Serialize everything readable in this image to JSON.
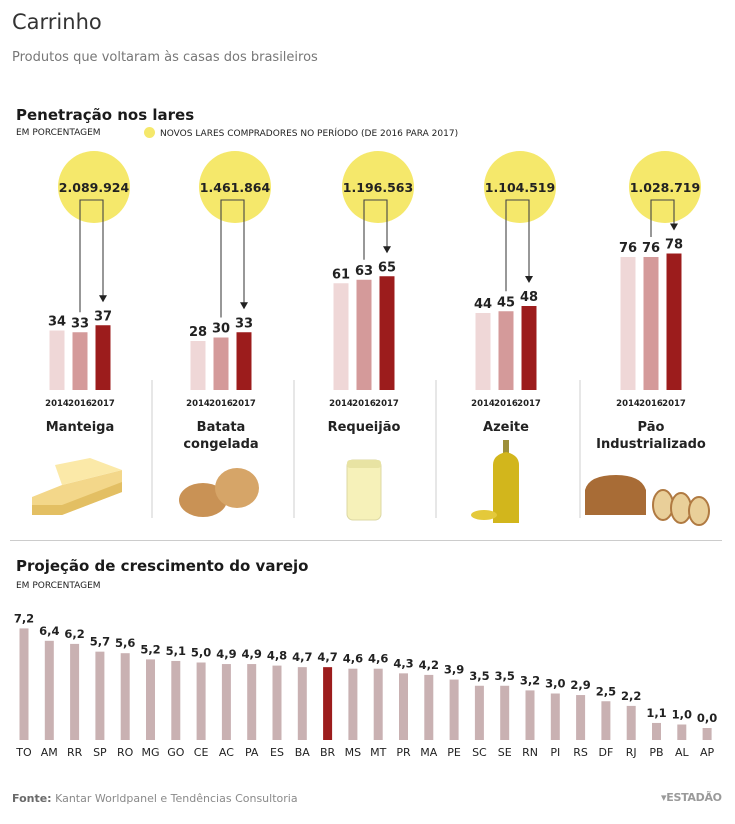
{
  "header": {
    "title": "Carrinho",
    "subtitle": "Produtos que voltaram às casas dos brasileiros"
  },
  "section1": {
    "title": "Penetração nos lares",
    "unit": "EM PORCENTAGEM",
    "legend": "NOVOS LARES COMPRADORES NO PERÍODO (DE 2016 PARA 2017)"
  },
  "section2": {
    "title": "Projeção de crescimento do varejo",
    "unit": "EM PORCENTAGEM"
  },
  "footer": {
    "source_label": "Fonte:",
    "source_text": " Kantar Worldpanel e Tendências Consultoria",
    "brand": "ESTADÃO"
  },
  "colors": {
    "bar_2014": "#efd7d7",
    "bar_2016": "#d49a9a",
    "bar_2017": "#9c1c1c",
    "circle": "#f5e86b",
    "state_bar": "#c9b1b2",
    "state_highlight": "#9c1c1c"
  },
  "chart_data": [
    {
      "type": "bar",
      "categories": [
        "2014",
        "2016",
        "2017"
      ],
      "products": [
        {
          "name": [
            "Manteiga"
          ],
          "values": [
            34,
            33,
            37
          ],
          "new_households": "2.089.924",
          "icon": "butter-icon"
        },
        {
          "name": [
            "Batata",
            "congelada"
          ],
          "values": [
            28,
            30,
            33
          ],
          "new_households": "1.461.864",
          "icon": "potato-icon"
        },
        {
          "name": [
            "Requeijão"
          ],
          "values": [
            61,
            63,
            65
          ],
          "new_households": "1.196.563",
          "icon": "cream-cheese-jar-icon"
        },
        {
          "name": [
            "Azeite"
          ],
          "values": [
            44,
            45,
            48
          ],
          "new_households": "1.104.519",
          "icon": "olive-oil-icon"
        },
        {
          "name": [
            "Pão",
            "Industrializado"
          ],
          "values": [
            76,
            76,
            78
          ],
          "new_households": "1.028.719",
          "icon": "bread-icon"
        }
      ]
    },
    {
      "type": "bar",
      "categories": [
        "TO",
        "AM",
        "RR",
        "SP",
        "RO",
        "MG",
        "GO",
        "CE",
        "AC",
        "PA",
        "ES",
        "BA",
        "BR",
        "MS",
        "MT",
        "PR",
        "MA",
        "PE",
        "SC",
        "SE",
        "RN",
        "PI",
        "RS",
        "DF",
        "RJ",
        "PB",
        "AL",
        "AP"
      ],
      "values": [
        7.2,
        6.4,
        6.2,
        5.7,
        5.6,
        5.2,
        5.1,
        5.0,
        4.9,
        4.9,
        4.8,
        4.7,
        4.7,
        4.6,
        4.6,
        4.3,
        4.2,
        3.9,
        3.5,
        3.5,
        3.2,
        3.0,
        2.9,
        2.5,
        2.2,
        1.1,
        1.0,
        0.0
      ],
      "labels": [
        "7,2",
        "6,4",
        "6,2",
        "5,7",
        "5,6",
        "5,2",
        "5,1",
        "5,0",
        "4,9",
        "4,9",
        "4,8",
        "4,7",
        "4,7",
        "4,6",
        "4,6",
        "4,3",
        "4,2",
        "3,9",
        "3,5",
        "3,5",
        "3,2",
        "3,0",
        "2,9",
        "2,5",
        "2,2",
        "1,1",
        "1,0",
        "0,0"
      ],
      "highlight": "BR"
    }
  ]
}
